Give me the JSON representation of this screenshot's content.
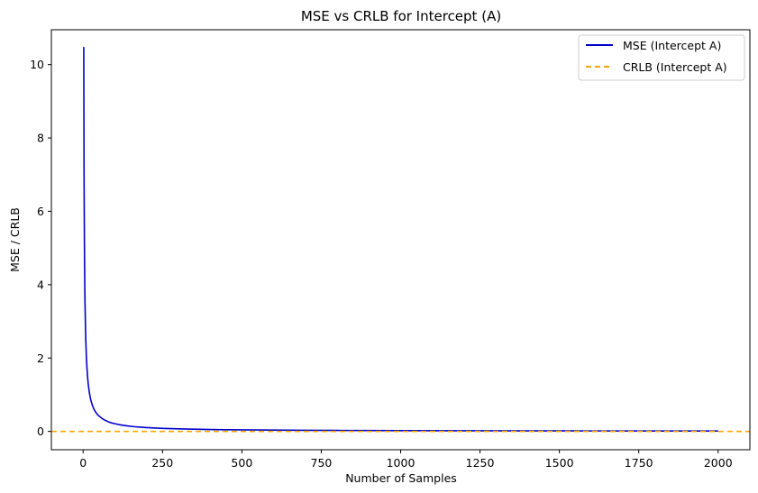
{
  "chart_data": {
    "type": "line",
    "title": "MSE vs CRLB for Intercept (A)",
    "xlabel": "Number of Samples",
    "ylabel": "MSE / CRLB",
    "xlim": [
      -100,
      2100
    ],
    "ylim": [
      -0.5,
      10.95
    ],
    "x_ticks": [
      0,
      250,
      500,
      750,
      1000,
      1250,
      1500,
      1750,
      2000
    ],
    "y_ticks": [
      0,
      2,
      4,
      6,
      8,
      10
    ],
    "grid": false,
    "legend_position": "top-right",
    "series": [
      {
        "name": "MSE (Intercept A)",
        "color": "#0000cc",
        "style": "solid",
        "x": [
          2,
          3,
          4,
          5,
          6,
          8,
          10,
          12,
          14,
          16,
          18,
          20,
          23,
          26,
          30,
          35,
          40,
          45,
          50,
          60,
          70,
          80,
          90,
          100,
          120,
          140,
          160,
          180,
          200,
          250,
          300,
          350,
          400,
          450,
          500,
          600,
          700,
          800,
          900,
          1000,
          1200,
          1400,
          1600,
          1800,
          2000
        ],
        "y": [
          10.48,
          6.9,
          5.2,
          4.15,
          3.45,
          2.6,
          2.08,
          1.74,
          1.49,
          1.3,
          1.16,
          1.04,
          0.9,
          0.8,
          0.69,
          0.59,
          0.52,
          0.46,
          0.42,
          0.35,
          0.3,
          0.26,
          0.23,
          0.21,
          0.175,
          0.15,
          0.13,
          0.116,
          0.104,
          0.083,
          0.07,
          0.06,
          0.052,
          0.046,
          0.042,
          0.035,
          0.03,
          0.026,
          0.023,
          0.021,
          0.017,
          0.015,
          0.013,
          0.012,
          0.0104
        ]
      },
      {
        "name": "CRLB (Intercept A)",
        "color": "#ffa500",
        "style": "dashed",
        "x": [
          -100,
          2100
        ],
        "y": [
          0,
          0
        ]
      }
    ]
  }
}
